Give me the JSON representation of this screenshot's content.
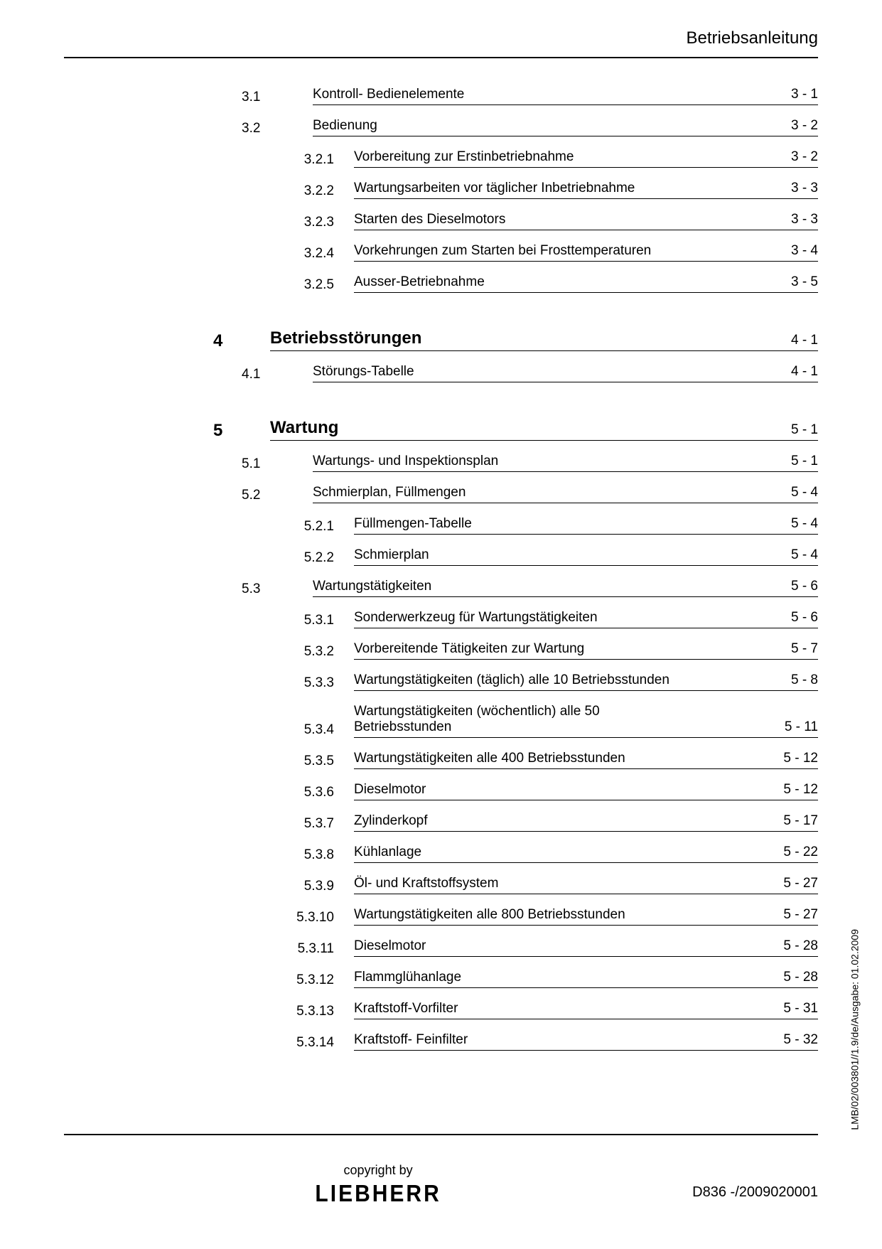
{
  "header": "Betriebsanleitung",
  "entries": [
    {
      "level": 2,
      "num": "3.1",
      "title": "Kontroll- Bedienelemente",
      "page": "3 - 1",
      "gap": ""
    },
    {
      "level": 2,
      "num": "3.2",
      "title": "Bedienung",
      "page": "3 - 2",
      "gap": "gap-s"
    },
    {
      "level": 3,
      "num": "3.2.1",
      "title": "Vorbereitung zur Erstinbetriebnahme",
      "page": "3 - 2",
      "gap": "gap-s"
    },
    {
      "level": 3,
      "num": "3.2.2",
      "title": "Wartungsarbeiten vor täglicher Inbetriebnahme",
      "page": "3 - 3",
      "gap": "gap-s"
    },
    {
      "level": 3,
      "num": "3.2.3",
      "title": "Starten des Dieselmotors",
      "page": "3 - 3",
      "gap": "gap-s"
    },
    {
      "level": 3,
      "num": "3.2.4",
      "title": "Vorkehrungen zum Starten bei Frosttemperaturen",
      "page": "3 - 4",
      "gap": "gap-s"
    },
    {
      "level": 3,
      "num": "3.2.5",
      "title": "Ausser-Betriebnahme",
      "page": "3 - 5",
      "gap": "gap-s"
    },
    {
      "level": 1,
      "num": "4",
      "title": "Betriebsstörungen",
      "page": "4 - 1",
      "gap": "gap-l"
    },
    {
      "level": 2,
      "num": "4.1",
      "title": "Störungs-Tabelle",
      "page": "4 - 1",
      "gap": "gap-s"
    },
    {
      "level": 1,
      "num": "5",
      "title": "Wartung",
      "page": "5 - 1",
      "gap": "gap-l"
    },
    {
      "level": 2,
      "num": "5.1",
      "title": "Wartungs- und Inspektionsplan",
      "page": "5 - 1",
      "gap": "gap-s"
    },
    {
      "level": 2,
      "num": "5.2",
      "title": "Schmierplan, Füllmengen",
      "page": "5 - 4",
      "gap": "gap-s"
    },
    {
      "level": 3,
      "num": "5.2.1",
      "title": "Füllmengen-Tabelle",
      "page": "5 - 4",
      "gap": "gap-s"
    },
    {
      "level": 3,
      "num": "5.2.2",
      "title": "Schmierplan",
      "page": "5 - 4",
      "gap": "gap-s"
    },
    {
      "level": 2,
      "num": "5.3",
      "title": "Wartungstätigkeiten",
      "page": "5 - 6",
      "gap": "gap-s"
    },
    {
      "level": 3,
      "num": "5.3.1",
      "title": "Sonderwerkzeug für Wartungstätigkeiten",
      "page": "5 - 6",
      "gap": "gap-s"
    },
    {
      "level": 3,
      "num": "5.3.2",
      "title": "Vorbereitende Tätigkeiten zur Wartung",
      "page": "5 - 7",
      "gap": "gap-s"
    },
    {
      "level": 3,
      "num": "5.3.3",
      "title": "Wartungstätigkeiten (täglich) alle 10 Betriebsstunden",
      "page": "5 - 8",
      "gap": "gap-s"
    },
    {
      "level": 3,
      "num": "5.3.4",
      "title": "Wartungstätigkeiten (wöchentlich) alle 50 Betriebsstunden",
      "page": "5 - 11",
      "gap": "gap-s"
    },
    {
      "level": 3,
      "num": "5.3.5",
      "title": "Wartungstätigkeiten alle 400 Betriebsstunden",
      "page": "5 - 12",
      "gap": "gap-s"
    },
    {
      "level": 3,
      "num": "5.3.6",
      "title": "Dieselmotor",
      "page": "5 - 12",
      "gap": "gap-s"
    },
    {
      "level": 3,
      "num": "5.3.7",
      "title": "Zylinderkopf",
      "page": "5 - 17",
      "gap": "gap-s"
    },
    {
      "level": 3,
      "num": "5.3.8",
      "title": "Kühlanlage",
      "page": "5 - 22",
      "gap": "gap-s"
    },
    {
      "level": 3,
      "num": "5.3.9",
      "title": "Öl- und Kraftstoffsystem",
      "page": "5 - 27",
      "gap": "gap-s"
    },
    {
      "level": 3,
      "num": "5.3.10",
      "title": "Wartungstätigkeiten alle 800 Betriebsstunden",
      "page": "5 - 27",
      "gap": "gap-s"
    },
    {
      "level": 3,
      "num": "5.3.11",
      "title": "Dieselmotor",
      "page": "5 - 28",
      "gap": "gap-s"
    },
    {
      "level": 3,
      "num": "5.3.12",
      "title": "Flammglühanlage",
      "page": "5 - 28",
      "gap": "gap-s"
    },
    {
      "level": 3,
      "num": "5.3.13",
      "title": "Kraftstoff-Vorfilter",
      "page": "5 - 31",
      "gap": "gap-s"
    },
    {
      "level": 3,
      "num": "5.3.14",
      "title": "Kraftstoff- Feinfilter",
      "page": "5 - 32",
      "gap": "gap-s"
    }
  ],
  "footer": {
    "copyright": "copyright by",
    "logo": "LIEBHERR",
    "docId": "D836 -/2009020001"
  },
  "side_text": "LMB/02/003801//1.9/de/Ausgabe: 01.02.2009"
}
